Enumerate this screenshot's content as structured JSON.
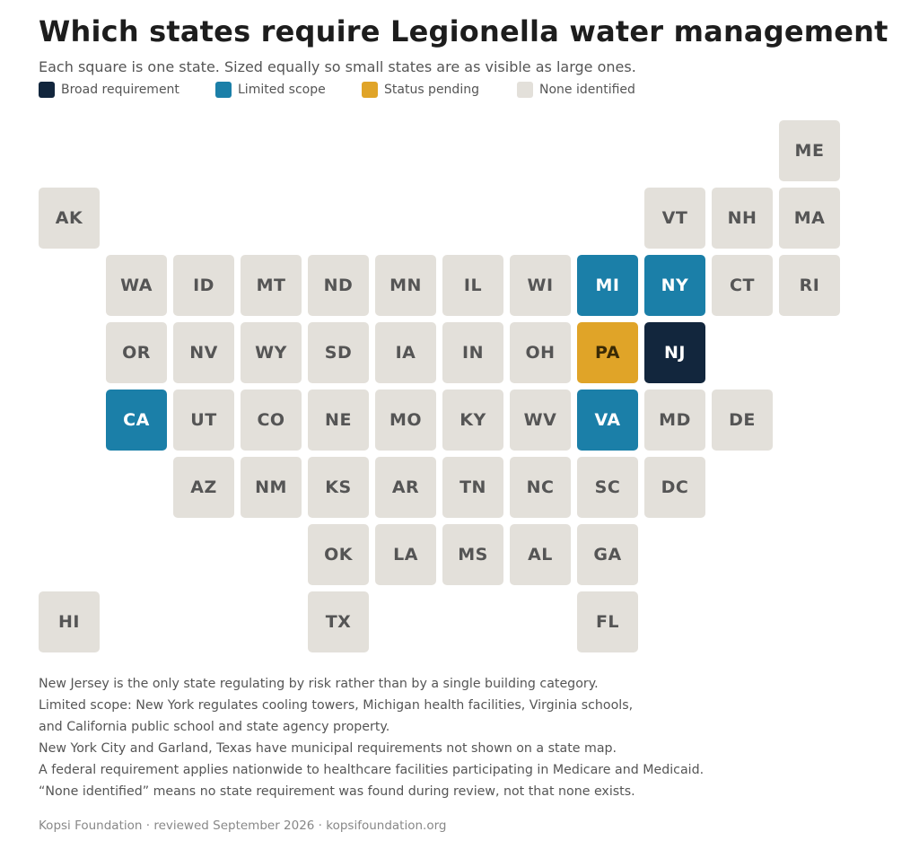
{
  "title": "Which states require Legionella water management",
  "subtitle": "Each square is one state. Sized equally so small states are as visible as large ones.",
  "colors": {
    "broad": "#12263d",
    "limited": "#1b7fa8",
    "pending": "#e0a428",
    "none": "#e3e0da",
    "text_dark": "#555555",
    "text_light": "#ffffff",
    "text_pending": "#3a2a05"
  },
  "legend": [
    {
      "key": "broad",
      "label": "Broad requirement"
    },
    {
      "key": "limited",
      "label": "Limited scope"
    },
    {
      "key": "pending",
      "label": "Status pending"
    },
    {
      "key": "none",
      "label": "None identified"
    }
  ],
  "states": [
    {
      "abbr": "ME",
      "status": "none",
      "col": 11,
      "row": 0
    },
    {
      "abbr": "AK",
      "status": "none",
      "col": 0,
      "row": 1
    },
    {
      "abbr": "VT",
      "status": "none",
      "col": 9,
      "row": 1
    },
    {
      "abbr": "NH",
      "status": "none",
      "col": 10,
      "row": 1
    },
    {
      "abbr": "MA",
      "status": "none",
      "col": 11,
      "row": 1
    },
    {
      "abbr": "WA",
      "status": "none",
      "col": 1,
      "row": 2
    },
    {
      "abbr": "ID",
      "status": "none",
      "col": 2,
      "row": 2
    },
    {
      "abbr": "MT",
      "status": "none",
      "col": 3,
      "row": 2
    },
    {
      "abbr": "ND",
      "status": "none",
      "col": 4,
      "row": 2
    },
    {
      "abbr": "MN",
      "status": "none",
      "col": 5,
      "row": 2
    },
    {
      "abbr": "IL",
      "status": "none",
      "col": 6,
      "row": 2
    },
    {
      "abbr": "WI",
      "status": "none",
      "col": 7,
      "row": 2
    },
    {
      "abbr": "MI",
      "status": "limited",
      "col": 8,
      "row": 2
    },
    {
      "abbr": "NY",
      "status": "limited",
      "col": 9,
      "row": 2
    },
    {
      "abbr": "CT",
      "status": "none",
      "col": 10,
      "row": 2
    },
    {
      "abbr": "RI",
      "status": "none",
      "col": 11,
      "row": 2
    },
    {
      "abbr": "OR",
      "status": "none",
      "col": 1,
      "row": 3
    },
    {
      "abbr": "NV",
      "status": "none",
      "col": 2,
      "row": 3
    },
    {
      "abbr": "WY",
      "status": "none",
      "col": 3,
      "row": 3
    },
    {
      "abbr": "SD",
      "status": "none",
      "col": 4,
      "row": 3
    },
    {
      "abbr": "IA",
      "status": "none",
      "col": 5,
      "row": 3
    },
    {
      "abbr": "IN",
      "status": "none",
      "col": 6,
      "row": 3
    },
    {
      "abbr": "OH",
      "status": "none",
      "col": 7,
      "row": 3
    },
    {
      "abbr": "PA",
      "status": "pending",
      "col": 8,
      "row": 3
    },
    {
      "abbr": "NJ",
      "status": "broad",
      "col": 9,
      "row": 3
    },
    {
      "abbr": "CA",
      "status": "limited",
      "col": 1,
      "row": 4
    },
    {
      "abbr": "UT",
      "status": "none",
      "col": 2,
      "row": 4
    },
    {
      "abbr": "CO",
      "status": "none",
      "col": 3,
      "row": 4
    },
    {
      "abbr": "NE",
      "status": "none",
      "col": 4,
      "row": 4
    },
    {
      "abbr": "MO",
      "status": "none",
      "col": 5,
      "row": 4
    },
    {
      "abbr": "KY",
      "status": "none",
      "col": 6,
      "row": 4
    },
    {
      "abbr": "WV",
      "status": "none",
      "col": 7,
      "row": 4
    },
    {
      "abbr": "VA",
      "status": "limited",
      "col": 8,
      "row": 4
    },
    {
      "abbr": "MD",
      "status": "none",
      "col": 9,
      "row": 4
    },
    {
      "abbr": "DE",
      "status": "none",
      "col": 10,
      "row": 4
    },
    {
      "abbr": "AZ",
      "status": "none",
      "col": 2,
      "row": 5
    },
    {
      "abbr": "NM",
      "status": "none",
      "col": 3,
      "row": 5
    },
    {
      "abbr": "KS",
      "status": "none",
      "col": 4,
      "row": 5
    },
    {
      "abbr": "AR",
      "status": "none",
      "col": 5,
      "row": 5
    },
    {
      "abbr": "TN",
      "status": "none",
      "col": 6,
      "row": 5
    },
    {
      "abbr": "NC",
      "status": "none",
      "col": 7,
      "row": 5
    },
    {
      "abbr": "SC",
      "status": "none",
      "col": 8,
      "row": 5
    },
    {
      "abbr": "DC",
      "status": "none",
      "col": 9,
      "row": 5
    },
    {
      "abbr": "OK",
      "status": "none",
      "col": 4,
      "row": 6
    },
    {
      "abbr": "LA",
      "status": "none",
      "col": 5,
      "row": 6
    },
    {
      "abbr": "MS",
      "status": "none",
      "col": 6,
      "row": 6
    },
    {
      "abbr": "AL",
      "status": "none",
      "col": 7,
      "row": 6
    },
    {
      "abbr": "GA",
      "status": "none",
      "col": 8,
      "row": 6
    },
    {
      "abbr": "HI",
      "status": "none",
      "col": 0,
      "row": 7
    },
    {
      "abbr": "TX",
      "status": "none",
      "col": 4,
      "row": 7
    },
    {
      "abbr": "FL",
      "status": "none",
      "col": 8,
      "row": 7
    }
  ],
  "notes": [
    "New Jersey is the only state regulating by risk rather than by a single building category.",
    "Limited scope: New York regulates cooling towers, Michigan health facilities, Virginia schools,",
    "and California public school and state agency property.",
    "New York City and Garland, Texas have municipal requirements not shown on a state map.",
    "A federal requirement applies nationwide to healthcare facilities participating in Medicare and Medicaid.",
    "“None identified” means no state requirement was found during review, not that none exists."
  ],
  "footer": "Kopsi Foundation · reviewed September 2026 · kopsifoundation.org"
}
